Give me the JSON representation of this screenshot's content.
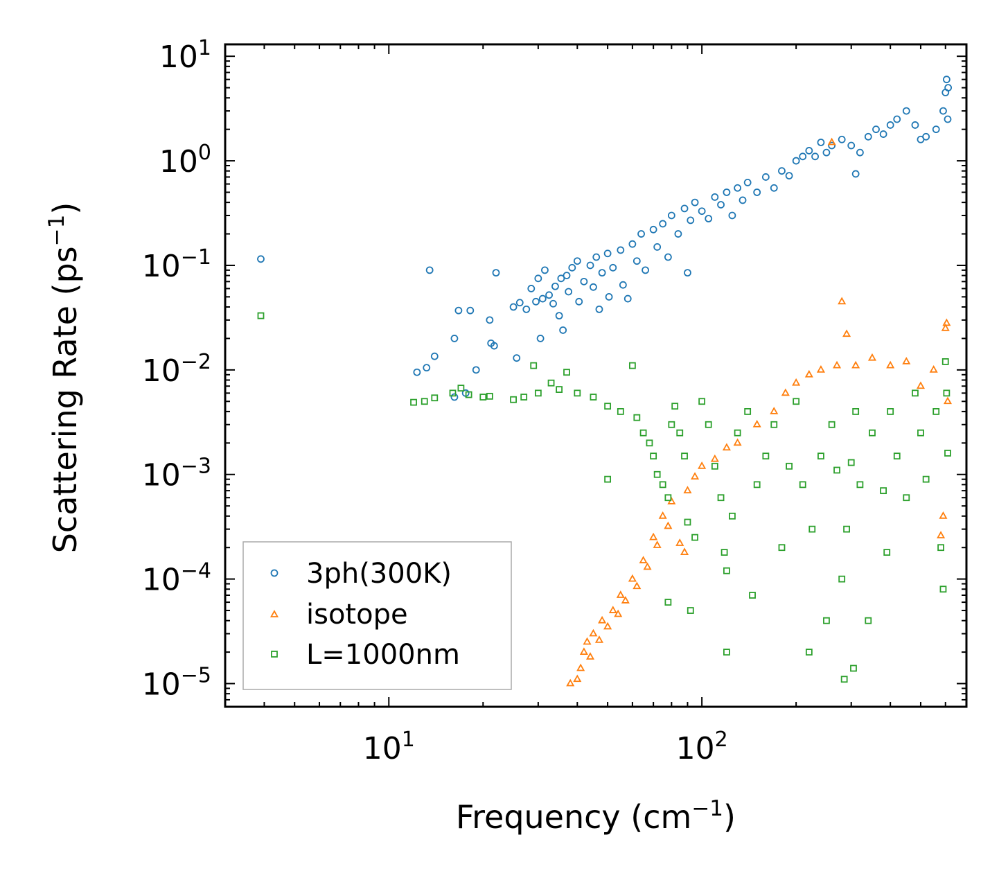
{
  "chart_data": {
    "type": "scatter",
    "title": "",
    "xlabel": {
      "base": "Frequency (cm",
      "exp": "−1",
      "tail": ")"
    },
    "ylabel": {
      "base": "Scattering Rate (ps",
      "exp": "−1",
      "tail": ")"
    },
    "xscale": "log",
    "yscale": "log",
    "xlim": [
      3,
      700
    ],
    "ylim": [
      6e-06,
      13
    ],
    "x_ticks": [
      {
        "value": 10,
        "base": "10",
        "exp": "1"
      },
      {
        "value": 100,
        "base": "10",
        "exp": "2"
      }
    ],
    "y_ticks": [
      {
        "value": 10,
        "base": "10",
        "exp": "1"
      },
      {
        "value": 1,
        "base": "10",
        "exp": "0"
      },
      {
        "value": 0.1,
        "base": "10",
        "exp": "−1"
      },
      {
        "value": 0.01,
        "base": "10",
        "exp": "−2"
      },
      {
        "value": 0.001,
        "base": "10",
        "exp": "−3"
      },
      {
        "value": 0.0001,
        "base": "10",
        "exp": "−4"
      },
      {
        "value": 1e-05,
        "base": "10",
        "exp": "−5"
      }
    ],
    "legend": {
      "position": "lower-left"
    },
    "series": [
      {
        "name": "3ph(300K)",
        "marker": "circle",
        "color": "#1f77b4",
        "points": [
          [
            3.9,
            0.115
          ],
          [
            13.5,
            0.09
          ],
          [
            22,
            0.085
          ],
          [
            12.3,
            0.0095
          ],
          [
            13.2,
            0.0105
          ],
          [
            14,
            0.0135
          ],
          [
            16.2,
            0.02
          ],
          [
            16.7,
            0.037
          ],
          [
            18.2,
            0.037
          ],
          [
            16.2,
            0.0055
          ],
          [
            17.6,
            0.006
          ],
          [
            19,
            0.01
          ],
          [
            21,
            0.03
          ],
          [
            21.2,
            0.018
          ],
          [
            21.7,
            0.017
          ],
          [
            25,
            0.04
          ],
          [
            25.6,
            0.013
          ],
          [
            26.2,
            0.044
          ],
          [
            27.5,
            0.038
          ],
          [
            28.5,
            0.06
          ],
          [
            29.5,
            0.045
          ],
          [
            30,
            0.075
          ],
          [
            30.5,
            0.02
          ],
          [
            31,
            0.048
          ],
          [
            31.5,
            0.09
          ],
          [
            32.5,
            0.052
          ],
          [
            33.5,
            0.043
          ],
          [
            34,
            0.063
          ],
          [
            35,
            0.033
          ],
          [
            35.5,
            0.075
          ],
          [
            36,
            0.024
          ],
          [
            37,
            0.08
          ],
          [
            37.5,
            0.056
          ],
          [
            38.5,
            0.095
          ],
          [
            40,
            0.11
          ],
          [
            40.5,
            0.045
          ],
          [
            42,
            0.07
          ],
          [
            44,
            0.1
          ],
          [
            45,
            0.062
          ],
          [
            46,
            0.12
          ],
          [
            47,
            0.038
          ],
          [
            48,
            0.085
          ],
          [
            50,
            0.13
          ],
          [
            50.5,
            0.05
          ],
          [
            52,
            0.095
          ],
          [
            55,
            0.14
          ],
          [
            56,
            0.065
          ],
          [
            58,
            0.048
          ],
          [
            60,
            0.16
          ],
          [
            62,
            0.11
          ],
          [
            64,
            0.2
          ],
          [
            66,
            0.09
          ],
          [
            70,
            0.22
          ],
          [
            72,
            0.15
          ],
          [
            75,
            0.25
          ],
          [
            78,
            0.12
          ],
          [
            80,
            0.3
          ],
          [
            84,
            0.2
          ],
          [
            88,
            0.35
          ],
          [
            90,
            0.085
          ],
          [
            92,
            0.27
          ],
          [
            95,
            0.4
          ],
          [
            100,
            0.33
          ],
          [
            105,
            0.28
          ],
          [
            110,
            0.45
          ],
          [
            115,
            0.38
          ],
          [
            120,
            0.5
          ],
          [
            125,
            0.3
          ],
          [
            130,
            0.55
          ],
          [
            135,
            0.42
          ],
          [
            140,
            0.62
          ],
          [
            150,
            0.5
          ],
          [
            160,
            0.7
          ],
          [
            170,
            0.55
          ],
          [
            180,
            0.8
          ],
          [
            190,
            0.72
          ],
          [
            200,
            1.0
          ],
          [
            210,
            1.1
          ],
          [
            220,
            1.25
          ],
          [
            230,
            1.1
          ],
          [
            240,
            1.5
          ],
          [
            250,
            1.2
          ],
          [
            260,
            1.4
          ],
          [
            280,
            1.6
          ],
          [
            300,
            1.4
          ],
          [
            310,
            0.75
          ],
          [
            320,
            1.2
          ],
          [
            340,
            1.7
          ],
          [
            360,
            2.0
          ],
          [
            380,
            1.8
          ],
          [
            400,
            2.2
          ],
          [
            420,
            2.5
          ],
          [
            450,
            3.0
          ],
          [
            480,
            2.2
          ],
          [
            500,
            1.6
          ],
          [
            520,
            1.7
          ],
          [
            560,
            2.0
          ],
          [
            590,
            3.0
          ],
          [
            600,
            4.5
          ],
          [
            605,
            6.0
          ],
          [
            610,
            2.5
          ],
          [
            612,
            5.0
          ]
        ]
      },
      {
        "name": "isotope",
        "marker": "triangle",
        "color": "#ff7f0e",
        "points": [
          [
            38,
            1e-05
          ],
          [
            40,
            1.1e-05
          ],
          [
            41,
            1.4e-05
          ],
          [
            42,
            2e-05
          ],
          [
            43,
            2.5e-05
          ],
          [
            44,
            1.8e-05
          ],
          [
            45,
            3e-05
          ],
          [
            47,
            2.6e-05
          ],
          [
            48,
            4e-05
          ],
          [
            50,
            3.5e-05
          ],
          [
            52,
            5e-05
          ],
          [
            54,
            4.6e-05
          ],
          [
            55,
            7e-05
          ],
          [
            57,
            6.2e-05
          ],
          [
            60,
            0.0001
          ],
          [
            62,
            8.5e-05
          ],
          [
            65,
            0.00015
          ],
          [
            67,
            0.00013
          ],
          [
            70,
            0.00025
          ],
          [
            72,
            0.00021
          ],
          [
            75,
            0.0004
          ],
          [
            78,
            0.00032
          ],
          [
            80,
            0.00055
          ],
          [
            85,
            0.00022
          ],
          [
            88,
            0.00018
          ],
          [
            90,
            0.0007
          ],
          [
            95,
            0.00095
          ],
          [
            100,
            0.0012
          ],
          [
            110,
            0.0014
          ],
          [
            120,
            0.0018
          ],
          [
            130,
            0.002
          ],
          [
            150,
            0.003
          ],
          [
            170,
            0.004
          ],
          [
            185,
            0.006
          ],
          [
            200,
            0.0075
          ],
          [
            220,
            0.009
          ],
          [
            240,
            0.01
          ],
          [
            260,
            1.5
          ],
          [
            270,
            0.011
          ],
          [
            280,
            0.045
          ],
          [
            290,
            0.022
          ],
          [
            310,
            0.011
          ],
          [
            350,
            0.013
          ],
          [
            400,
            0.011
          ],
          [
            450,
            0.012
          ],
          [
            500,
            0.007
          ],
          [
            550,
            0.01
          ],
          [
            600,
            0.025
          ],
          [
            605,
            0.028
          ],
          [
            610,
            0.005
          ],
          [
            590,
            0.0004
          ],
          [
            580,
            0.00026
          ]
        ]
      },
      {
        "name": "L=1000nm",
        "marker": "square",
        "color": "#2ca02c",
        "points": [
          [
            3.9,
            0.033
          ],
          [
            12,
            0.0049
          ],
          [
            13,
            0.005
          ],
          [
            14,
            0.0054
          ],
          [
            16,
            0.006
          ],
          [
            17,
            0.0067
          ],
          [
            18,
            0.0058
          ],
          [
            20,
            0.0055
          ],
          [
            21,
            0.0056
          ],
          [
            25,
            0.0052
          ],
          [
            27,
            0.0055
          ],
          [
            29,
            0.011
          ],
          [
            30,
            0.006
          ],
          [
            33,
            0.0075
          ],
          [
            35,
            0.0065
          ],
          [
            37,
            0.0095
          ],
          [
            40,
            0.006
          ],
          [
            45,
            0.0055
          ],
          [
            50,
            0.0045
          ],
          [
            55,
            0.004
          ],
          [
            50,
            0.0009
          ],
          [
            60,
            0.011
          ],
          [
            62,
            0.0035
          ],
          [
            65,
            0.0025
          ],
          [
            68,
            0.002
          ],
          [
            70,
            0.0015
          ],
          [
            72,
            0.001
          ],
          [
            75,
            0.0008
          ],
          [
            78,
            0.0006
          ],
          [
            80,
            0.003
          ],
          [
            82,
            0.0045
          ],
          [
            85,
            0.0025
          ],
          [
            88,
            0.0015
          ],
          [
            90,
            0.00035
          ],
          [
            95,
            0.00025
          ],
          [
            78,
            6e-05
          ],
          [
            92,
            5e-05
          ],
          [
            100,
            0.005
          ],
          [
            105,
            0.003
          ],
          [
            110,
            0.0012
          ],
          [
            115,
            0.0006
          ],
          [
            118,
            0.00018
          ],
          [
            120,
            0.00012
          ],
          [
            120,
            2e-05
          ],
          [
            125,
            0.0004
          ],
          [
            130,
            0.0025
          ],
          [
            140,
            0.004
          ],
          [
            145,
            7e-05
          ],
          [
            150,
            0.0008
          ],
          [
            160,
            0.0015
          ],
          [
            170,
            0.003
          ],
          [
            180,
            0.0002
          ],
          [
            190,
            0.0012
          ],
          [
            200,
            0.005
          ],
          [
            210,
            0.0008
          ],
          [
            220,
            2e-05
          ],
          [
            225,
            0.0003
          ],
          [
            240,
            0.0015
          ],
          [
            250,
            4e-05
          ],
          [
            260,
            0.003
          ],
          [
            270,
            0.0011
          ],
          [
            280,
            0.0001
          ],
          [
            285,
            1.1e-05
          ],
          [
            290,
            0.0003
          ],
          [
            300,
            0.0013
          ],
          [
            305,
            1.4e-05
          ],
          [
            310,
            0.004
          ],
          [
            320,
            0.0008
          ],
          [
            340,
            4e-05
          ],
          [
            350,
            0.0025
          ],
          [
            380,
            0.0007
          ],
          [
            390,
            0.00018
          ],
          [
            400,
            0.004
          ],
          [
            420,
            0.0015
          ],
          [
            450,
            0.0006
          ],
          [
            480,
            0.006
          ],
          [
            500,
            0.0025
          ],
          [
            520,
            0.0009
          ],
          [
            560,
            0.004
          ],
          [
            580,
            0.0002
          ],
          [
            590,
            8e-05
          ],
          [
            600,
            0.012
          ],
          [
            605,
            0.006
          ],
          [
            610,
            0.0016
          ]
        ]
      }
    ]
  }
}
